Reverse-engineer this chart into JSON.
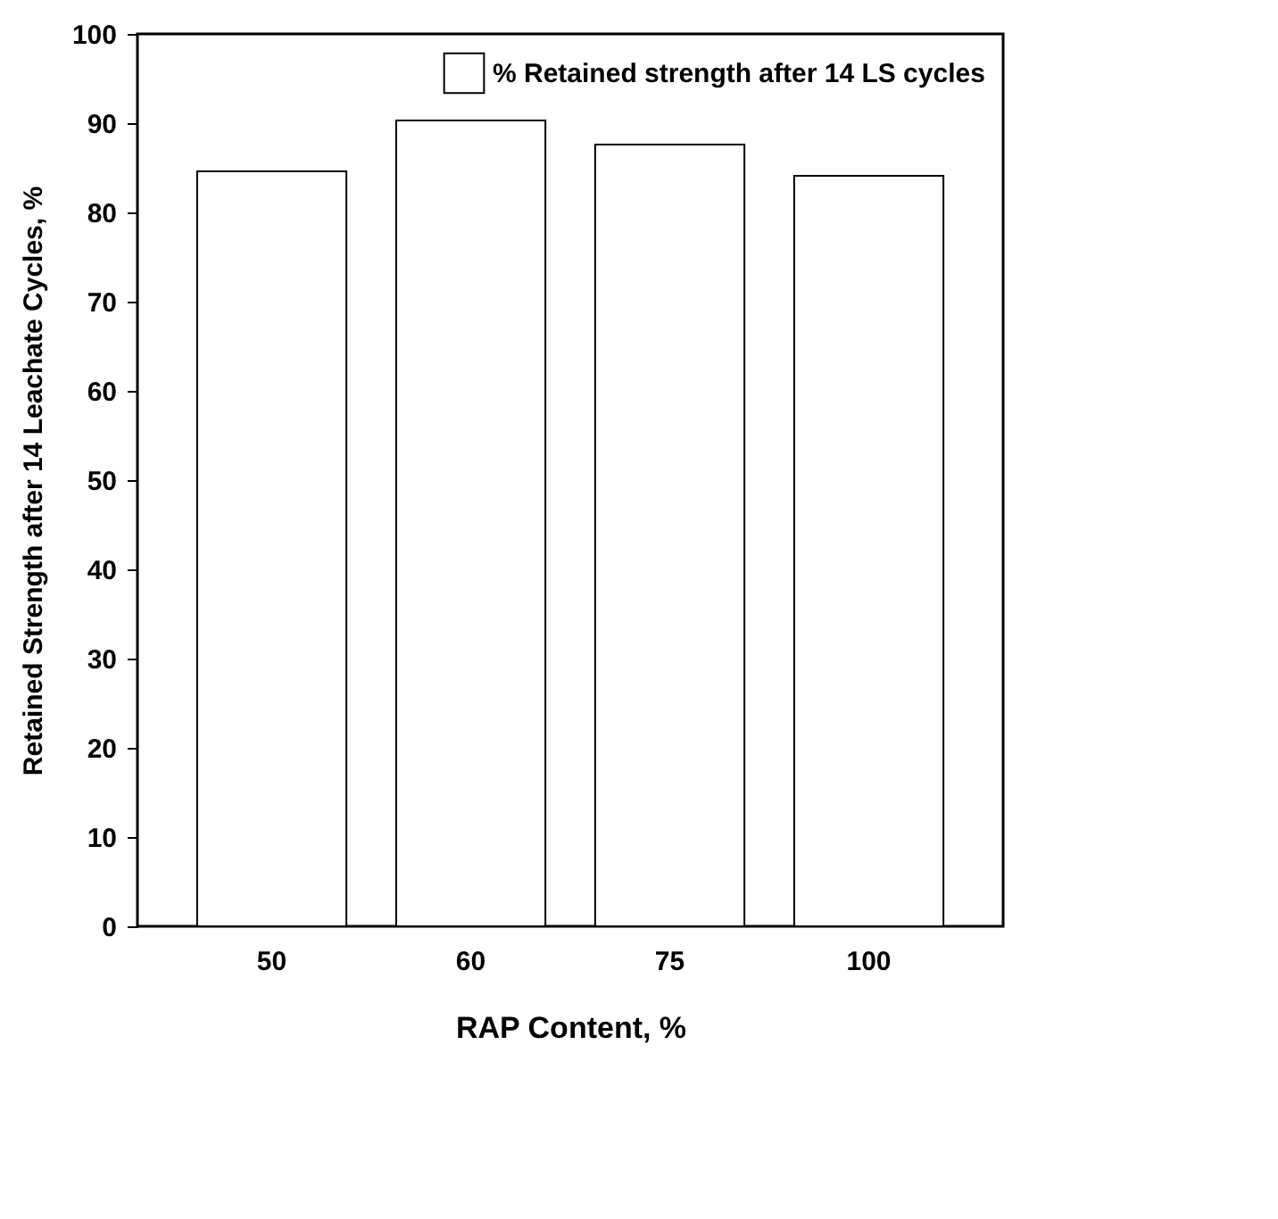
{
  "chart_data": {
    "type": "bar",
    "xlabel": "RAP Content, %",
    "ylabel": "Retained Strength after 14 Leachate Cycles, %",
    "categories": [
      "50",
      "60",
      "75",
      "100"
    ],
    "series": [
      {
        "name": "% Retained strength after 14 LS cycles",
        "color": "#ffffff",
        "values": [
          84.6,
          90.3,
          87.6,
          84.1
        ]
      }
    ],
    "ylim": [
      0,
      100
    ],
    "yticks": [
      0,
      10,
      20,
      30,
      40,
      50,
      60,
      70,
      80,
      90,
      100
    ],
    "grid": false,
    "legend": "top right"
  }
}
